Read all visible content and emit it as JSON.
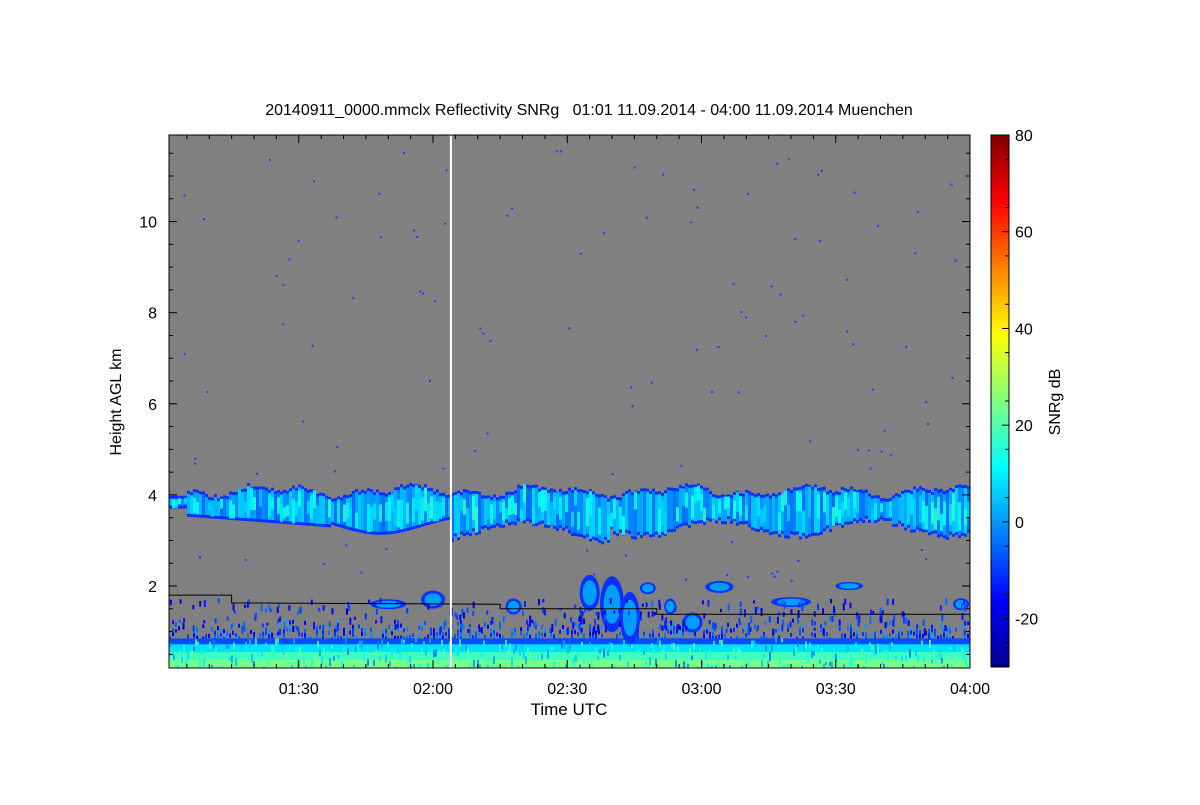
{
  "chart_data": {
    "type": "heatmap",
    "title": "20140911_0000.mmclx Reflectivity SNRg   01:01 11.09.2014 - 04:00 11.09.2014 Muenchen",
    "xlabel": "Time UTC",
    "ylabel": "Height AGL km",
    "colorbar_label": "SNRg dB",
    "x_range": [
      "01:01",
      "04:00"
    ],
    "y_range_km": [
      0.2,
      11.9
    ],
    "colorbar_range_db": [
      -30,
      80
    ],
    "x_ticks": [
      "01:30",
      "02:00",
      "02:30",
      "03:00",
      "03:30",
      "04:00"
    ],
    "y_ticks": [
      "2",
      "4",
      "6",
      "8",
      "10"
    ],
    "colorbar_ticks": [
      "-20",
      "0",
      "20",
      "40",
      "60",
      "80"
    ],
    "background_color": "#808080",
    "marker_line_time": "02:04",
    "marker_line_color": "#ffffff",
    "features": [
      {
        "name": "mid-level cloud layer",
        "time_start": "01:01",
        "time_end": "04:00",
        "base_km": 3.2,
        "top_km": 4.1,
        "snr_db": 5
      },
      {
        "name": "boundary layer echoes",
        "time_start": "01:01",
        "time_end": "04:00",
        "base_km": 0.2,
        "top_km": 0.8,
        "snr_db": 20
      },
      {
        "name": "low cloud cells",
        "time_start": "02:30",
        "time_end": "02:45",
        "base_km": 1.0,
        "top_km": 2.3,
        "snr_db": 5
      }
    ],
    "boundary_layer_line": [
      {
        "time": "01:01",
        "km": 1.8
      },
      {
        "time": "01:15",
        "km": 1.8
      },
      {
        "time": "01:15",
        "km": 1.63
      },
      {
        "time": "02:15",
        "km": 1.6
      },
      {
        "time": "02:15",
        "km": 1.5
      },
      {
        "time": "02:50",
        "km": 1.5
      },
      {
        "time": "02:50",
        "km": 1.38
      },
      {
        "time": "04:00",
        "km": 1.38
      }
    ]
  }
}
